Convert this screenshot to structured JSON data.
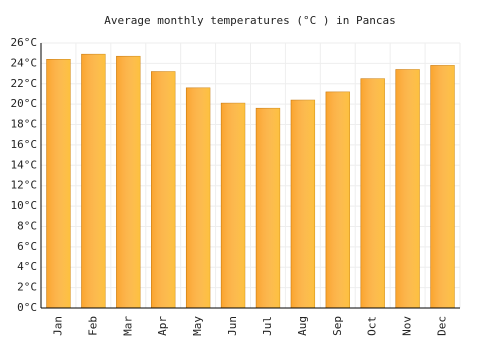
{
  "chart_data": {
    "type": "bar",
    "title": "Average monthly temperatures (°C ) in Pancas",
    "categories": [
      "Jan",
      "Feb",
      "Mar",
      "Apr",
      "May",
      "Jun",
      "Jul",
      "Aug",
      "Sep",
      "Oct",
      "Nov",
      "Dec"
    ],
    "values": [
      24.4,
      24.9,
      24.7,
      23.2,
      21.6,
      20.1,
      19.6,
      20.4,
      21.2,
      22.5,
      23.4,
      23.8
    ],
    "color": "#fba42c",
    "ylim": [
      0,
      26
    ],
    "yticks": [
      {
        "value": 0,
        "label": "0°C"
      },
      {
        "value": 2,
        "label": "2°C"
      },
      {
        "value": 4,
        "label": "4°C"
      },
      {
        "value": 6,
        "label": "6°C"
      },
      {
        "value": 8,
        "label": "8°C"
      },
      {
        "value": 10,
        "label": "10°C"
      },
      {
        "value": 12,
        "label": "12°C"
      },
      {
        "value": 14,
        "label": "14°C"
      },
      {
        "value": 16,
        "label": "16°C"
      },
      {
        "value": 18,
        "label": "18°C"
      },
      {
        "value": 20,
        "label": "20°C"
      },
      {
        "value": 22,
        "label": "22°C"
      },
      {
        "value": 24,
        "label": "24°C"
      },
      {
        "value": 26,
        "label": "26°C"
      }
    ],
    "grid": true
  }
}
